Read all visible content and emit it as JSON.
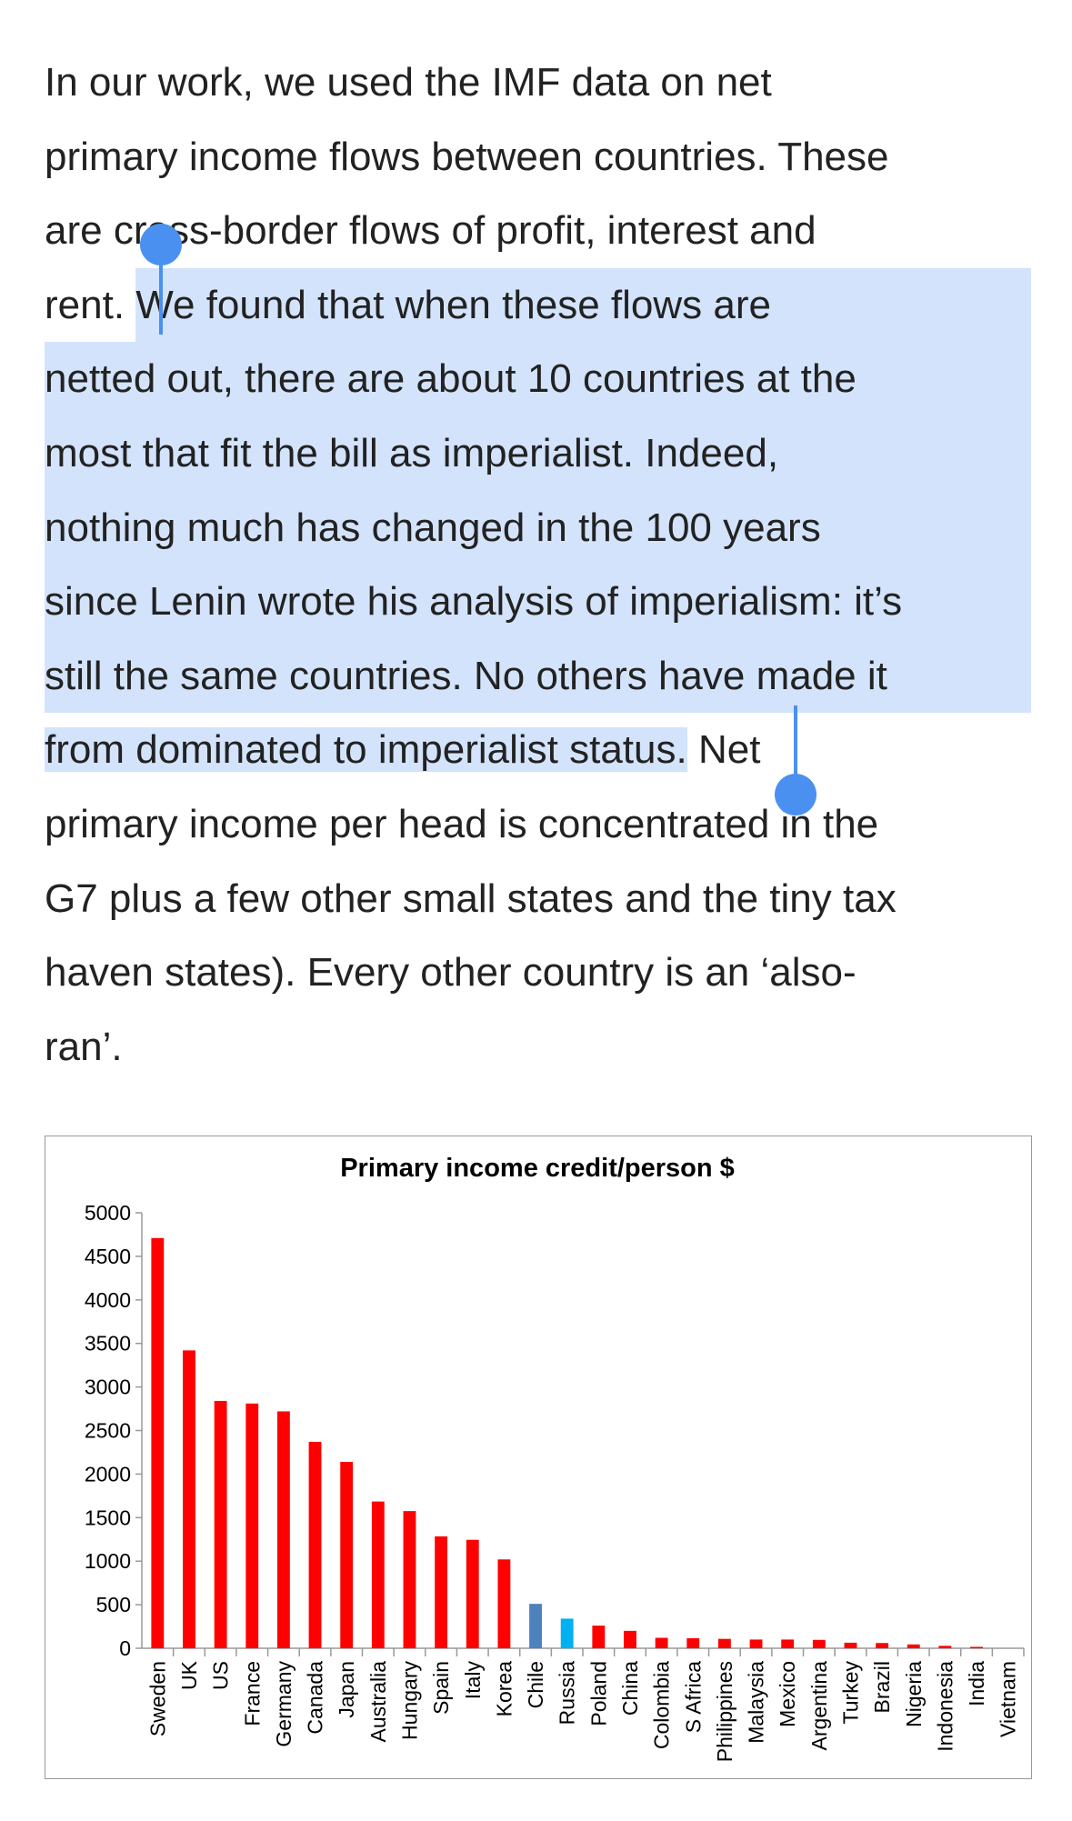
{
  "article": {
    "lines": [
      {
        "pre": "In our work, we used the IMF data on net",
        "sel": "",
        "post": ""
      },
      {
        "pre": "primary income flows between countries. These",
        "sel": "",
        "post": ""
      },
      {
        "pre": "are cross-border flows of profit, interest and",
        "sel": "",
        "post": ""
      },
      {
        "pre": "rent.  ",
        "sel": "We found that when these flows are",
        "post": ""
      },
      {
        "pre": "",
        "sel": "netted out, there are about 10 countries at the",
        "post": ""
      },
      {
        "pre": "",
        "sel": "most that fit the bill as imperialist.  Indeed,",
        "post": ""
      },
      {
        "pre": "",
        "sel": "nothing much has changed in the 100 years",
        "post": ""
      },
      {
        "pre": "",
        "sel": "since Lenin wrote his analysis of imperialism: it’s",
        "post": ""
      },
      {
        "pre": "",
        "sel": "still the same countries.  No others have made it",
        "post": ""
      },
      {
        "pre": "",
        "sel": "from dominated to imperialist status.",
        "post": " Net"
      },
      {
        "pre": "primary income per head is concentrated in the",
        "sel": "",
        "post": ""
      },
      {
        "pre": "G7 plus a few other small states and the tiny tax",
        "sel": "",
        "post": ""
      },
      {
        "pre": "haven states).  Every other country is an ‘also-",
        "sel": "",
        "post": ""
      },
      {
        "pre": "ran’.",
        "sel": "",
        "post": ""
      }
    ],
    "selection_color": "#d3e3fb",
    "handle_color": "#4a90f0"
  },
  "chart_data": {
    "type": "bar",
    "title": "Primary income credit/person $",
    "xlabel": "",
    "ylabel": "",
    "ylim": [
      0,
      5000
    ],
    "yticks": [
      "0",
      "500",
      "1000",
      "1500",
      "2000",
      "2500",
      "3000",
      "3500",
      "4000",
      "4500",
      "5000"
    ],
    "grid": false,
    "legend": "none",
    "categories": [
      "Sweden",
      "UK",
      "US",
      "France",
      "Germany",
      "Canada",
      "Japan",
      "Australia",
      "Hungary",
      "Spain",
      "Italy",
      "Korea",
      "Chile",
      "Russia",
      "Poland",
      "China",
      "Colombia",
      "S Africa",
      "Philippines",
      "Malaysia",
      "Mexico",
      "Argentina",
      "Turkey",
      "Brazil",
      "Nigeria",
      "Indonesia",
      "India",
      "Vietnam"
    ],
    "values": [
      4710,
      3420,
      2840,
      2810,
      2720,
      2370,
      2140,
      1685,
      1575,
      1285,
      1245,
      1020,
      510,
      340,
      260,
      200,
      120,
      115,
      108,
      100,
      100,
      96,
      64,
      60,
      44,
      28,
      16,
      0
    ],
    "colors": {
      "default": "#ff0000",
      "Chile": "#4f81bd",
      "Russia": "#00b0f0"
    }
  }
}
